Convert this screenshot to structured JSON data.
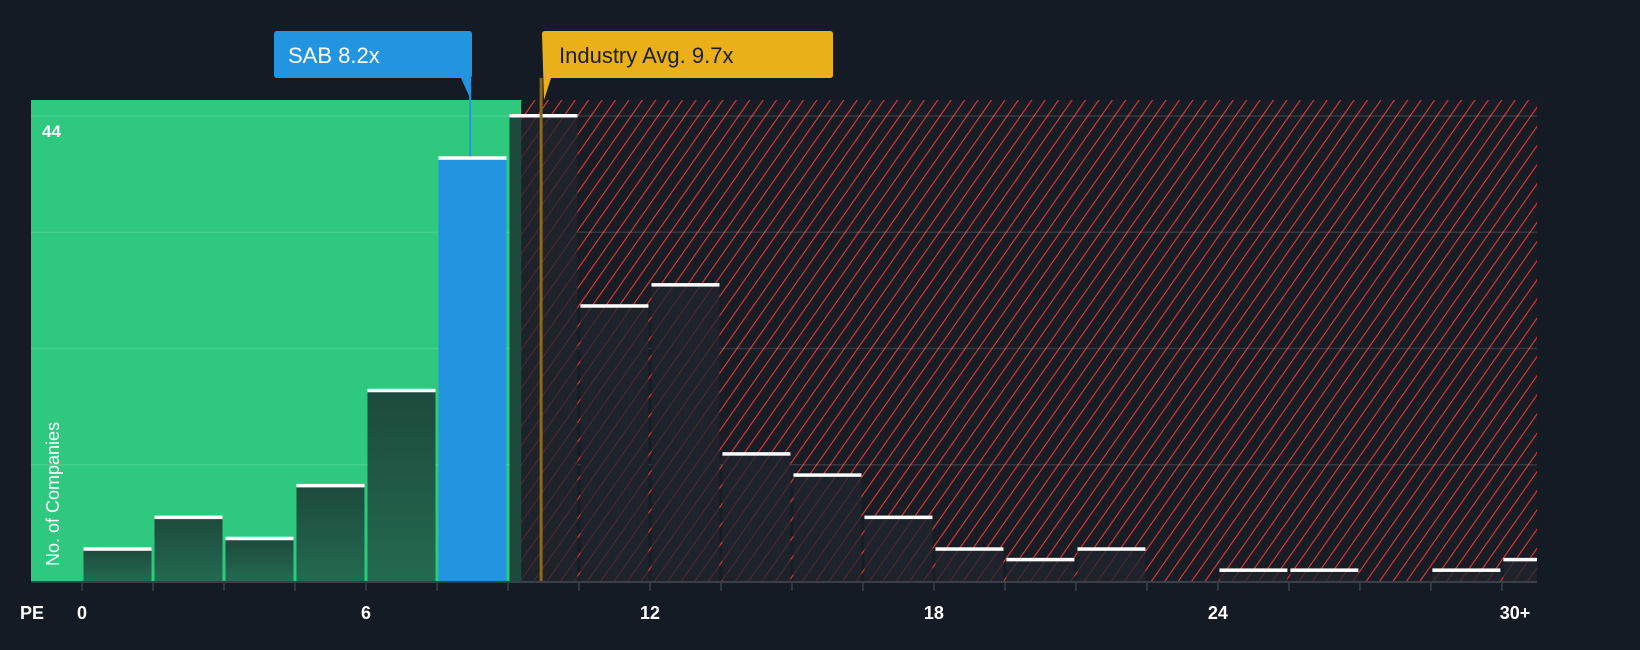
{
  "chart_data": {
    "type": "bar",
    "title": "",
    "xlabel": "PE",
    "ylabel": "No. of Companies",
    "bin_width": 1.5,
    "bin_starts": [
      0,
      1.5,
      3,
      4.5,
      6,
      7.5,
      9,
      10.5,
      12,
      13.5,
      15,
      16.5,
      18,
      19.5,
      21,
      22.5,
      24,
      25.5,
      27,
      28.5,
      30
    ],
    "values": [
      3,
      6,
      4,
      9,
      18,
      40,
      44,
      26,
      28,
      12,
      10,
      6,
      3,
      2,
      3,
      0,
      1,
      1,
      0,
      1,
      2
    ],
    "highlight_bin_index": 5,
    "x_ticks": [
      {
        "value": 0,
        "label": "0"
      },
      {
        "value": 6,
        "label": "6"
      },
      {
        "value": 12,
        "label": "12"
      },
      {
        "value": 18,
        "label": "18"
      },
      {
        "value": 24,
        "label": "24"
      },
      {
        "value": 30,
        "label": "30+"
      }
    ],
    "y_tick_label": "44",
    "ylim": [
      0,
      44
    ],
    "y_gridlines": [
      11,
      22,
      33,
      44
    ],
    "xlim": [
      -1.08,
      30.75
    ],
    "fair_zone_end": 9.28,
    "markers": [
      {
        "label": "SAB 8.2x",
        "value": 8.2,
        "color": "#2394e0"
      },
      {
        "label": "Industry Avg. 9.7x",
        "value": 9.7,
        "color": "#e9b01a"
      }
    ],
    "colors": {
      "background": "#151b24",
      "good_zone": "#2ec97f",
      "bad_hatch": "#e03a3e",
      "highlight": "#2394e0"
    }
  }
}
